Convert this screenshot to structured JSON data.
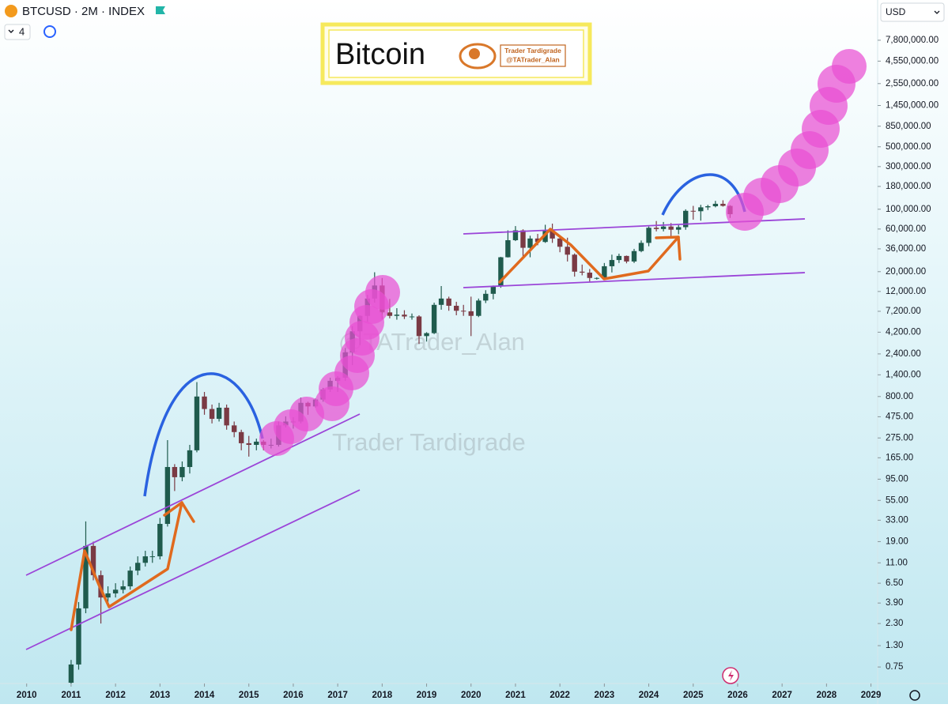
{
  "header": {
    "symbol": "BTCUSD · 2M · INDEX",
    "interval_count": 4,
    "currency": "USD"
  },
  "banner": {
    "title": "Bitcoin",
    "brand": "Trader Tardigrade",
    "handle": "@TATrader_Alan"
  },
  "watermarks": [
    "@TATrader_Alan",
    "Trader Tardigrade"
  ],
  "chart_data": {
    "type": "candlestick",
    "log_scale": true,
    "up_color": "#1f5b4d",
    "down_color": "#7a3a44",
    "x": [
      2011,
      2011.17,
      2011.33,
      2011.5,
      2011.67,
      2011.83,
      2012,
      2012.17,
      2012.33,
      2012.5,
      2012.67,
      2012.83,
      2013,
      2013.17,
      2013.33,
      2013.5,
      2013.67,
      2013.83,
      2014,
      2014.17,
      2014.33,
      2014.5,
      2014.67,
      2014.83,
      2015,
      2015.17,
      2015.33,
      2015.5,
      2015.67,
      2015.83,
      2016,
      2016.17,
      2016.33,
      2016.5,
      2016.67,
      2016.83,
      2017,
      2017.17,
      2017.33,
      2017.5,
      2017.67,
      2017.83,
      2018,
      2018.17,
      2018.33,
      2018.5,
      2018.67,
      2018.83,
      2019,
      2019.17,
      2019.33,
      2019.5,
      2019.67,
      2019.83,
      2020,
      2020.17,
      2020.33,
      2020.5,
      2020.67,
      2020.83,
      2021,
      2021.17,
      2021.33,
      2021.5,
      2021.67,
      2021.83,
      2022,
      2022.17,
      2022.33,
      2022.5,
      2022.67,
      2022.83,
      2023,
      2023.17,
      2023.33,
      2023.5,
      2023.67,
      2023.83,
      2024,
      2024.17,
      2024.33,
      2024.5,
      2024.67,
      2024.83,
      2025,
      2025.17,
      2025.33,
      2025.5,
      2025.67,
      2025.83
    ],
    "open": [
      0.5,
      0.8,
      3.4,
      17,
      8,
      4.5,
      5,
      5.5,
      6,
      9,
      11,
      13,
      13,
      30,
      130,
      100,
      130,
      200,
      800,
      580,
      450,
      600,
      380,
      320,
      240,
      230,
      250,
      230,
      230,
      380,
      420,
      420,
      680,
      620,
      740,
      960,
      1200,
      1300,
      2500,
      4300,
      6400,
      10000,
      14000,
      7000,
      6400,
      6600,
      6300,
      6300,
      3800,
      4100,
      8500,
      10000,
      8300,
      7300,
      7200,
      6400,
      9500,
      11300,
      13800,
      29000,
      45000,
      58000,
      37000,
      47000,
      43000,
      57000,
      47000,
      38000,
      31000,
      20000,
      19500,
      17000,
      17000,
      23000,
      27000,
      30000,
      26000,
      34000,
      42000,
      62000,
      60000,
      64000,
      59000,
      63000,
      96000,
      95000,
      105000,
      108000,
      115000,
      109000
    ],
    "high": [
      0.9,
      4,
      32,
      19,
      9,
      6,
      6.5,
      7,
      10,
      13,
      15,
      15,
      35,
      260,
      140,
      150,
      230,
      1160,
      900,
      650,
      680,
      650,
      420,
      340,
      290,
      270,
      260,
      270,
      420,
      480,
      470,
      780,
      700,
      760,
      1000,
      1300,
      1350,
      2800,
      4900,
      6500,
      11000,
      19700,
      17000,
      9900,
      7800,
      7400,
      6800,
      6500,
      4200,
      9000,
      13800,
      10500,
      9200,
      8500,
      10500,
      10000,
      12400,
      14000,
      29300,
      58000,
      64800,
      59600,
      50500,
      52900,
      67000,
      69000,
      48000,
      48000,
      32000,
      24000,
      21400,
      17300,
      25000,
      31000,
      31800,
      30300,
      36000,
      44700,
      64000,
      73800,
      72000,
      70000,
      66500,
      99800,
      109000,
      112000,
      111900,
      124000,
      126000,
      111000
    ],
    "low": [
      0.4,
      0.7,
      3,
      7,
      2.3,
      4,
      4.5,
      5,
      5.5,
      8,
      10,
      11,
      12,
      28,
      70,
      90,
      110,
      190,
      500,
      400,
      420,
      340,
      280,
      200,
      170,
      200,
      200,
      210,
      220,
      360,
      350,
      400,
      500,
      600,
      700,
      900,
      900,
      1200,
      1800,
      3000,
      5500,
      9000,
      5900,
      6000,
      5800,
      5900,
      5800,
      3100,
      3300,
      4000,
      7500,
      7300,
      6500,
      6400,
      3800,
      6200,
      8900,
      9800,
      13200,
      28800,
      44000,
      28800,
      29000,
      39500,
      42000,
      42000,
      33000,
      26000,
      17600,
      18200,
      15500,
      16300,
      16500,
      19600,
      25000,
      24800,
      25000,
      33000,
      38500,
      56500,
      56500,
      49000,
      52500,
      58900,
      76500,
      74500,
      98000,
      105000,
      107000,
      80000
    ],
    "close": [
      0.8,
      3.4,
      17,
      8,
      4.5,
      5,
      5.5,
      6,
      9,
      11,
      13,
      13,
      30,
      130,
      100,
      130,
      200,
      800,
      580,
      450,
      600,
      380,
      320,
      240,
      230,
      250,
      230,
      230,
      380,
      420,
      420,
      680,
      620,
      740,
      960,
      1200,
      1300,
      2500,
      4300,
      6400,
      10000,
      14000,
      7000,
      6400,
      6600,
      6300,
      6300,
      3800,
      4100,
      8500,
      10000,
      8300,
      7300,
      7200,
      6400,
      9500,
      11300,
      13800,
      29000,
      45000,
      58000,
      37000,
      47000,
      43000,
      57000,
      47000,
      38000,
      31000,
      20000,
      19500,
      17000,
      17000,
      23000,
      27000,
      30000,
      26000,
      34000,
      42000,
      62000,
      60000,
      64000,
      59000,
      63000,
      96000,
      95000,
      105000,
      108000,
      115000,
      109000,
      88000
    ],
    "xlim": [
      2009.4,
      2029.15
    ],
    "xticks": [
      2010,
      2011,
      2012,
      2013,
      2014,
      2015,
      2016,
      2017,
      2018,
      2019,
      2020,
      2021,
      2022,
      2023,
      2024,
      2025,
      2026,
      2027,
      2028,
      2029
    ],
    "ylim": [
      0.49,
      22000000
    ],
    "yticks": [
      {
        "value": 7800000,
        "label": "7,800,000.00"
      },
      {
        "value": 4550000,
        "label": "4,550,000.00"
      },
      {
        "value": 2550000,
        "label": "2,550,000.00"
      },
      {
        "value": 1450000,
        "label": "1,450,000.00"
      },
      {
        "value": 850000,
        "label": "850,000.00"
      },
      {
        "value": 500000,
        "label": "500,000.00"
      },
      {
        "value": 300000,
        "label": "300,000.00"
      },
      {
        "value": 180000,
        "label": "180,000.00"
      },
      {
        "value": 100000,
        "label": "100,000.00"
      },
      {
        "value": 60000,
        "label": "60,000.00"
      },
      {
        "value": 36000,
        "label": "36,000.00"
      },
      {
        "value": 20000,
        "label": "20,000.00"
      },
      {
        "value": 12000,
        "label": "12,000.00"
      },
      {
        "value": 7200,
        "label": "7,200.00"
      },
      {
        "value": 4200,
        "label": "4,200.00"
      },
      {
        "value": 2400,
        "label": "2,400.00"
      },
      {
        "value": 1400,
        "label": "1,400.00"
      },
      {
        "value": 800,
        "label": "800.00"
      },
      {
        "value": 475,
        "label": "475.00"
      },
      {
        "value": 275,
        "label": "275.00"
      },
      {
        "value": 165,
        "label": "165.00"
      },
      {
        "value": 95,
        "label": "95.00"
      },
      {
        "value": 55,
        "label": "55.00"
      },
      {
        "value": 33,
        "label": "33.00"
      },
      {
        "value": 19,
        "label": "19.00"
      },
      {
        "value": 11,
        "label": "11.00"
      },
      {
        "value": 6.5,
        "label": "6.50"
      },
      {
        "value": 3.9,
        "label": "3.90"
      },
      {
        "value": 2.3,
        "label": "2.30"
      },
      {
        "value": 1.3,
        "label": "1.30"
      },
      0.75
    ]
  }
}
